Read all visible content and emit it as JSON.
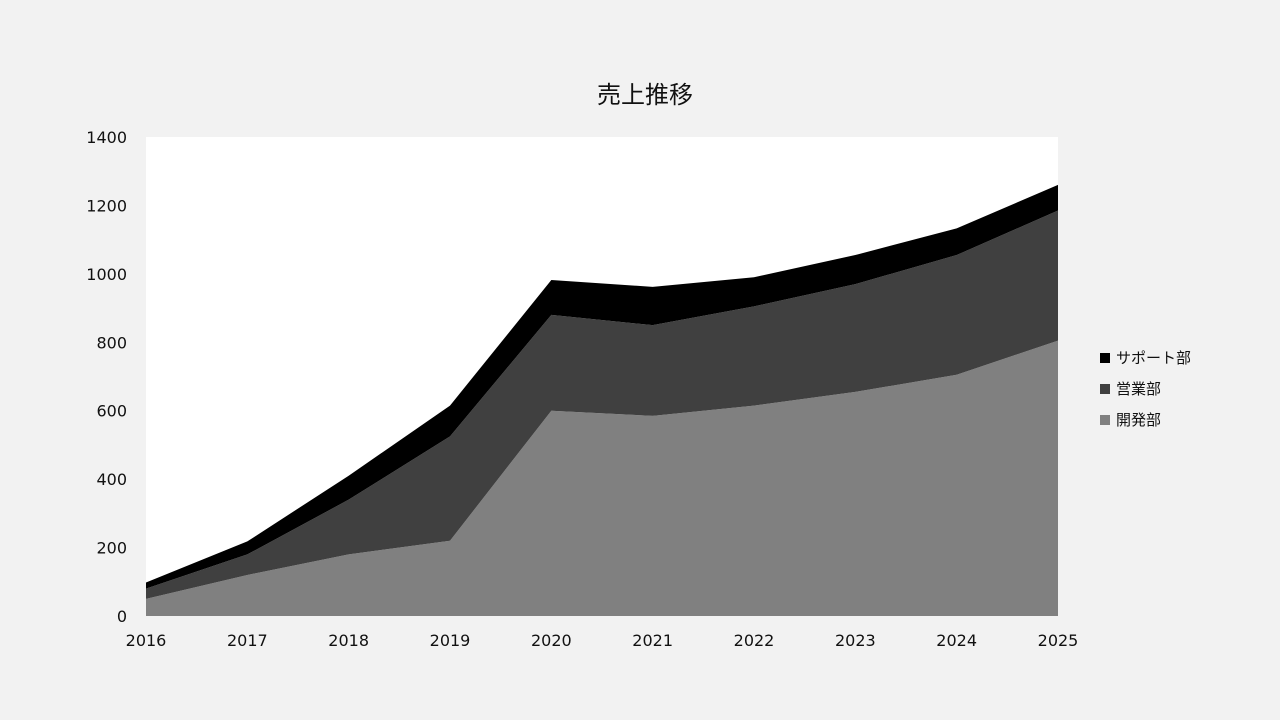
{
  "chart_data": {
    "type": "area",
    "stacked": true,
    "title": "売上推移",
    "xlabel": "",
    "ylabel": "",
    "x": [
      "2016",
      "2017",
      "2018",
      "2019",
      "2020",
      "2021",
      "2022",
      "2023",
      "2024",
      "2025"
    ],
    "ylim": [
      0,
      1400
    ],
    "yticks": [
      0,
      200,
      400,
      600,
      800,
      1000,
      1200,
      1400
    ],
    "grid": false,
    "legend_position": "right",
    "series": [
      {
        "name": "開発部",
        "color": "#808080",
        "values": [
          50,
          120,
          180,
          220,
          600,
          585,
          615,
          655,
          705,
          805
        ]
      },
      {
        "name": "営業部",
        "color": "#404040",
        "values": [
          30,
          60,
          160,
          305,
          280,
          265,
          290,
          315,
          350,
          380
        ]
      },
      {
        "name": "サポート部",
        "color": "#000000",
        "values": [
          18,
          38,
          70,
          90,
          102,
          112,
          85,
          85,
          78,
          75
        ]
      }
    ],
    "legend_order": [
      "サポート部",
      "営業部",
      "開発部"
    ]
  },
  "colors": {
    "page_background": "#f2f2f2",
    "plot_background": "#ffffff"
  }
}
